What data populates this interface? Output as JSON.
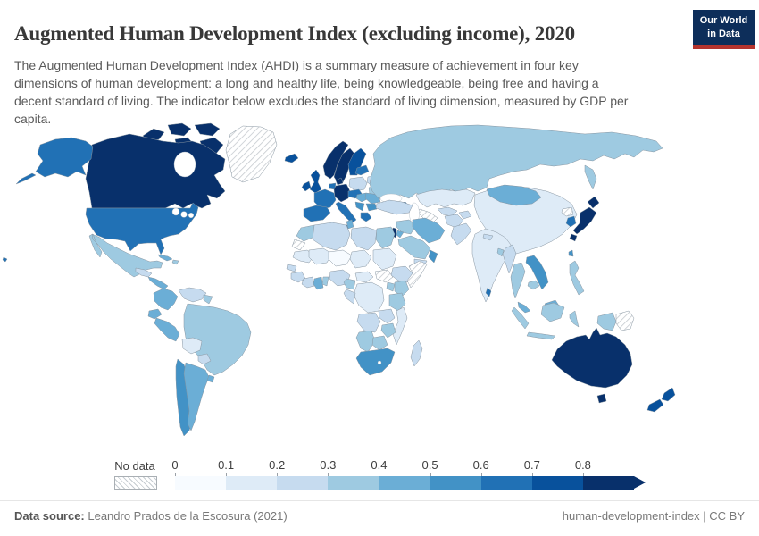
{
  "header": {
    "title": "Augmented Human Development Index (excluding income), 2020",
    "subtitle": "The Augmented Human Development Index (AHDI) is a summary measure of achievement in four key dimensions of human development: a long and healthy life, being knowledgeable, being free and having a decent standard of living. The indicator below excludes the standard of living dimension, measured by GDP per capita."
  },
  "logo": {
    "line1": "Our World",
    "line2": "in Data",
    "background": "#0d2e5a",
    "accent": "#b5342e",
    "text_color": "#ffffff"
  },
  "legend": {
    "no_data_label": "No data",
    "ticks": [
      "0",
      "0.1",
      "0.2",
      "0.3",
      "0.4",
      "0.5",
      "0.6",
      "0.7",
      "0.8"
    ],
    "colors": [
      "#f7fbff",
      "#deebf7",
      "#c6dbef",
      "#9ecae1",
      "#6baed6",
      "#4292c6",
      "#2171b5",
      "#08519c",
      "#08306b"
    ],
    "arrow_color": "#08306b"
  },
  "footer": {
    "source_label": "Data source:",
    "source_text": " Leandro Prados de la Escosura (2021)",
    "right_text": "human-development-index | CC BY"
  },
  "chart_data": {
    "type": "heatmap",
    "subtype": "world-choropleth",
    "title": "Augmented Human Development Index (excluding income), 2020",
    "metric": "Augmented Human Development Index (excluding income)",
    "year": 2020,
    "scale": {
      "min": 0,
      "bin_width": 0.1,
      "top_bin_label": "0.8",
      "colors": [
        "#f7fbff",
        "#deebf7",
        "#c6dbef",
        "#9ecae1",
        "#6baed6",
        "#4292c6",
        "#2171b5",
        "#08519c",
        "#08306b"
      ],
      "no_data_pattern": "diagonal-hatch"
    },
    "regions": [
      {
        "id": "canada",
        "name": "Canada",
        "value": 0.84
      },
      {
        "id": "usa",
        "name": "United States",
        "value": 0.65
      },
      {
        "id": "mexico",
        "name": "Mexico",
        "value": 0.35
      },
      {
        "id": "greenland",
        "name": "Greenland",
        "value": null
      },
      {
        "id": "central-america-north",
        "name": "Guatemala-Honduras",
        "value": 0.24
      },
      {
        "id": "central-america-south",
        "name": "Nicaragua-Panama",
        "value": 0.45
      },
      {
        "id": "cuba",
        "name": "Cuba",
        "value": 0.44
      },
      {
        "id": "hispaniola",
        "name": "Haiti / Dominican Republic",
        "value": 0.33
      },
      {
        "id": "colombia",
        "name": "Colombia",
        "value": 0.46
      },
      {
        "id": "venezuela",
        "name": "Venezuela",
        "value": 0.25
      },
      {
        "id": "guyanas",
        "name": "Guyana-Suriname",
        "value": 0.34
      },
      {
        "id": "ecuador",
        "name": "Ecuador",
        "value": 0.45
      },
      {
        "id": "peru",
        "name": "Peru",
        "value": 0.46
      },
      {
        "id": "brazil",
        "name": "Brazil",
        "value": 0.38
      },
      {
        "id": "bolivia",
        "name": "Bolivia",
        "value": 0.18
      },
      {
        "id": "paraguay",
        "name": "Paraguay",
        "value": 0.27
      },
      {
        "id": "chile",
        "name": "Chile",
        "value": 0.55
      },
      {
        "id": "argentina",
        "name": "Argentina",
        "value": 0.48
      },
      {
        "id": "uruguay",
        "name": "Uruguay",
        "value": 0.48
      },
      {
        "id": "iceland",
        "name": "Iceland",
        "value": 0.76
      },
      {
        "id": "norway",
        "name": "Norway",
        "value": 0.86
      },
      {
        "id": "sweden",
        "name": "Sweden",
        "value": 0.85
      },
      {
        "id": "finland",
        "name": "Finland",
        "value": 0.78
      },
      {
        "id": "denmark",
        "name": "Denmark",
        "value": 0.82
      },
      {
        "id": "uk",
        "name": "United Kingdom",
        "value": 0.75
      },
      {
        "id": "ireland",
        "name": "Ireland",
        "value": 0.74
      },
      {
        "id": "netherlands-belgium",
        "name": "Netherlands-Belgium",
        "value": 0.69
      },
      {
        "id": "germany",
        "name": "Germany",
        "value": 0.85
      },
      {
        "id": "poland",
        "name": "Poland",
        "value": 0.28
      },
      {
        "id": "baltic-states",
        "name": "Baltic states",
        "value": 0.64
      },
      {
        "id": "belarus",
        "name": "Belarus",
        "value": 0.25
      },
      {
        "id": "ukraine",
        "name": "Ukraine",
        "value": 0.35
      },
      {
        "id": "france",
        "name": "France",
        "value": 0.68
      },
      {
        "id": "iberia",
        "name": "Spain-Portugal",
        "value": 0.67
      },
      {
        "id": "italy",
        "name": "Italy",
        "value": 0.64
      },
      {
        "id": "czech-austria",
        "name": "Czechia-Austria",
        "value": 0.66
      },
      {
        "id": "hungary-slovakia",
        "name": "Hungary-Slovakia",
        "value": 0.45
      },
      {
        "id": "romania",
        "name": "Romania",
        "value": 0.46
      },
      {
        "id": "balkans",
        "name": "Western Balkans",
        "value": 0.52
      },
      {
        "id": "bulgaria",
        "name": "Bulgaria",
        "value": 0.53
      },
      {
        "id": "greece",
        "name": "Greece",
        "value": 0.63
      },
      {
        "id": "russia",
        "name": "Russia",
        "value": 0.36
      },
      {
        "id": "kazakhstan",
        "name": "Kazakhstan",
        "value": 0.17
      },
      {
        "id": "uzbekistan",
        "name": "Uzbekistan",
        "value": 0.25
      },
      {
        "id": "turkmenistan",
        "name": "Turkmenistan",
        "value": null
      },
      {
        "id": "kyrgyz-tajik",
        "name": "Kyrgyzstan-Tajikistan",
        "value": 0.28
      },
      {
        "id": "caucasus",
        "name": "Georgia-Armenia-Azerbaijan",
        "value": 0.62
      },
      {
        "id": "turkey",
        "name": "Turkey",
        "value": 0.28
      },
      {
        "id": "syria-iraq",
        "name": "Syria-Iraq",
        "value": 0.33
      },
      {
        "id": "israel",
        "name": "Israel",
        "value": 0.81
      },
      {
        "id": "jordan",
        "name": "Jordan",
        "value": 0.42
      },
      {
        "id": "saudi-arabia",
        "name": "Saudi Arabia",
        "value": 0.36
      },
      {
        "id": "yemen",
        "name": "Yemen",
        "value": 0.22
      },
      {
        "id": "oman-uae",
        "name": "Oman-UAE",
        "value": 0.52
      },
      {
        "id": "iran",
        "name": "Iran",
        "value": 0.44
      },
      {
        "id": "afghanistan",
        "name": "Afghanistan",
        "value": 0.22
      },
      {
        "id": "pakistan",
        "name": "Pakistan",
        "value": 0.24
      },
      {
        "id": "china",
        "name": "China",
        "value": 0.15
      },
      {
        "id": "mongolia",
        "name": "Mongolia",
        "value": 0.45
      },
      {
        "id": "india",
        "name": "India",
        "value": 0.18
      },
      {
        "id": "nepal",
        "name": "Nepal",
        "value": 0.27
      },
      {
        "id": "bangladesh",
        "name": "Bangladesh",
        "value": 0.33
      },
      {
        "id": "sri-lanka",
        "name": "Sri Lanka",
        "value": 0.62
      },
      {
        "id": "myanmar",
        "name": "Myanmar",
        "value": 0.26
      },
      {
        "id": "thailand",
        "name": "Thailand",
        "value": 0.37
      },
      {
        "id": "laos-vietnam",
        "name": "Vietnam-Laos",
        "value": 0.52
      },
      {
        "id": "cambodia",
        "name": "Cambodia",
        "value": 0.34
      },
      {
        "id": "malaysia",
        "name": "Malaysia",
        "value": 0.45
      },
      {
        "id": "indonesia",
        "name": "Indonesia",
        "value": 0.36
      },
      {
        "id": "philippines",
        "name": "Philippines",
        "value": 0.38
      },
      {
        "id": "taiwan",
        "name": "Taiwan",
        "value": 0.55
      },
      {
        "id": "south-korea",
        "name": "South Korea",
        "value": 0.67
      },
      {
        "id": "north-korea",
        "name": "North Korea",
        "value": null
      },
      {
        "id": "japan",
        "name": "Japan",
        "value": 0.84
      },
      {
        "id": "morocco",
        "name": "Morocco",
        "value": 0.33
      },
      {
        "id": "western-sahara",
        "name": "Western Sahara",
        "value": null
      },
      {
        "id": "algeria",
        "name": "Algeria",
        "value": 0.25
      },
      {
        "id": "tunisia",
        "name": "Tunisia",
        "value": 0.45
      },
      {
        "id": "libya",
        "name": "Libya",
        "value": 0.24
      },
      {
        "id": "egypt",
        "name": "Egypt",
        "value": 0.34
      },
      {
        "id": "mauritania",
        "name": "Mauritania",
        "value": 0.14
      },
      {
        "id": "mali",
        "name": "Mali",
        "value": 0.13
      },
      {
        "id": "niger",
        "name": "Niger",
        "value": 0.04
      },
      {
        "id": "chad",
        "name": "Chad",
        "value": 0.12
      },
      {
        "id": "sudan",
        "name": "Sudan",
        "value": 0.13
      },
      {
        "id": "senegal",
        "name": "Senegal",
        "value": 0.22
      },
      {
        "id": "guinea",
        "name": "Guinea",
        "value": 0.21
      },
      {
        "id": "ivory-coast",
        "name": "Cote d'Ivoire",
        "value": 0.22
      },
      {
        "id": "ghana",
        "name": "Ghana",
        "value": 0.44
      },
      {
        "id": "togo-benin",
        "name": "Togo-Benin",
        "value": 0.31
      },
      {
        "id": "nigeria",
        "name": "Nigeria",
        "value": 0.23
      },
      {
        "id": "cameroon",
        "name": "Cameroon",
        "value": 0.32
      },
      {
        "id": "central-african-republic",
        "name": "Central African Republic",
        "value": 0.15
      },
      {
        "id": "south-sudan",
        "name": "South Sudan",
        "value": null
      },
      {
        "id": "ethiopia",
        "name": "Ethiopia",
        "value": 0.21
      },
      {
        "id": "somalia",
        "name": "Somalia",
        "value": null
      },
      {
        "id": "kenya",
        "name": "Kenya",
        "value": 0.35
      },
      {
        "id": "uganda",
        "name": "Uganda",
        "value": 0.33
      },
      {
        "id": "drc",
        "name": "Democratic Republic of Congo",
        "value": 0.12
      },
      {
        "id": "congo-gabon",
        "name": "Congo-Gabon",
        "value": 0.26
      },
      {
        "id": "tanzania",
        "name": "Tanzania",
        "value": 0.34
      },
      {
        "id": "angola",
        "name": "Angola",
        "value": 0.24
      },
      {
        "id": "zambia",
        "name": "Zambia",
        "value": 0.27
      },
      {
        "id": "malawi-mozambique",
        "name": "Malawi-Mozambique",
        "value": 0.16
      },
      {
        "id": "zimbabwe",
        "name": "Zimbabwe",
        "value": 0.33
      },
      {
        "id": "namibia",
        "name": "Namibia",
        "value": 0.37
      },
      {
        "id": "botswana",
        "name": "Botswana",
        "value": 0.38
      },
      {
        "id": "south-africa",
        "name": "South Africa",
        "value": 0.55
      },
      {
        "id": "madagascar",
        "name": "Madagascar",
        "value": 0.25
      },
      {
        "id": "australia",
        "name": "Australia",
        "value": 0.83
      },
      {
        "id": "new-zealand",
        "name": "New Zealand",
        "value": 0.78
      },
      {
        "id": "papua-new-guinea",
        "name": "Papua New Guinea",
        "value": null
      }
    ]
  }
}
